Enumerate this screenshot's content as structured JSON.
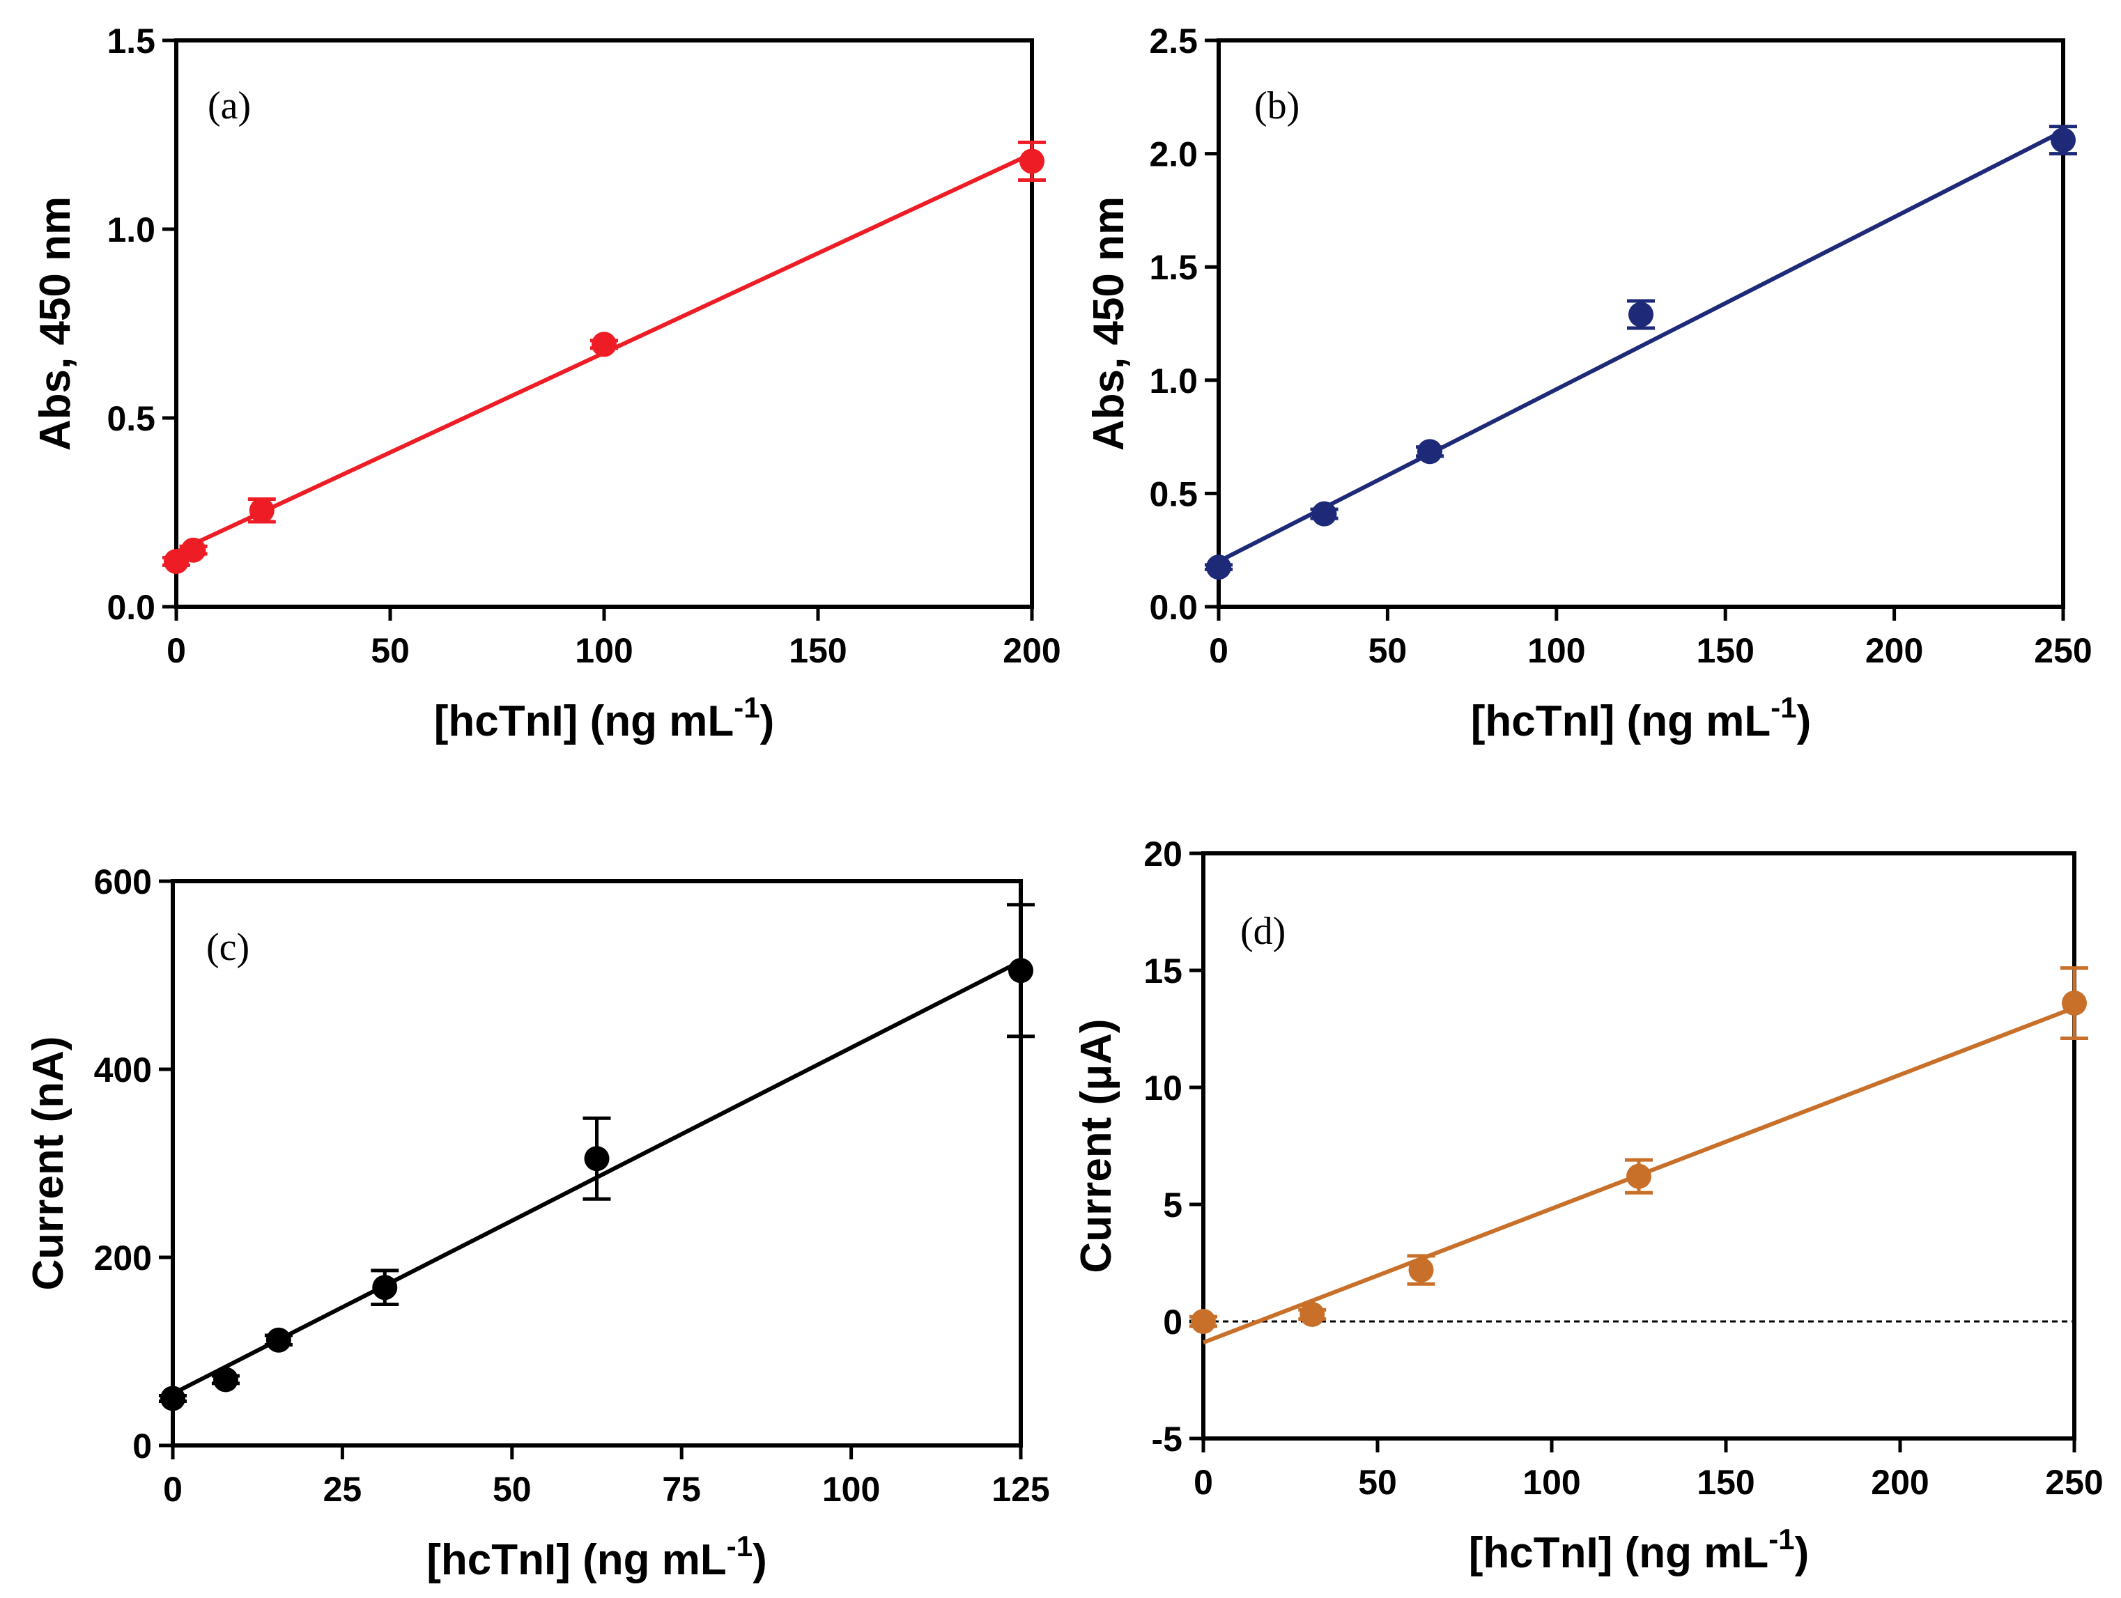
{
  "chart_data": [
    {
      "type": "scatter",
      "panel_label": "(a)",
      "xlabel_main": "[hcTnI] (ng mL",
      "xlabel_sup": "-1",
      "xlabel_close": ")",
      "ylabel": "Abs, 450 nm",
      "xlim": [
        0,
        200
      ],
      "ylim": [
        0,
        1.5
      ],
      "xticks": [
        0,
        50,
        100,
        150,
        200
      ],
      "yticks": [
        0,
        0.5,
        1.0,
        1.5
      ],
      "xtick_labels": [
        "0",
        "50",
        "100",
        "150",
        "200"
      ],
      "ytick_labels": [
        "0.0",
        "0.5",
        "1.0",
        "1.5"
      ],
      "color": "#ee1c24",
      "points": [
        {
          "x": 0,
          "y": 0.12,
          "err": 0.01
        },
        {
          "x": 4,
          "y": 0.15,
          "err": 0.01
        },
        {
          "x": 20,
          "y": 0.255,
          "err": 0.03
        },
        {
          "x": 100,
          "y": 0.695,
          "err": 0.01
        },
        {
          "x": 200,
          "y": 1.18,
          "err": 0.05
        }
      ],
      "fit": {
        "x": [
          0,
          200
        ],
        "y": [
          0.145,
          1.2
        ]
      },
      "zero_line": false,
      "grid": false
    },
    {
      "type": "scatter",
      "panel_label": "(b)",
      "xlabel_main": "[hcTnI] (ng mL",
      "xlabel_sup": "-1",
      "xlabel_close": ")",
      "ylabel": "Abs, 450 nm",
      "xlim": [
        0,
        250
      ],
      "ylim": [
        0,
        2.5
      ],
      "xticks": [
        0,
        50,
        100,
        150,
        200,
        250
      ],
      "yticks": [
        0,
        0.5,
        1.0,
        1.5,
        2.0,
        2.5
      ],
      "xtick_labels": [
        "0",
        "50",
        "100",
        "150",
        "200",
        "250"
      ],
      "ytick_labels": [
        "0.0",
        "0.5",
        "1.0",
        "1.5",
        "2.0",
        "2.5"
      ],
      "color": "#1e2a78",
      "points": [
        {
          "x": 0,
          "y": 0.175,
          "err": 0.01
        },
        {
          "x": 31.25,
          "y": 0.41,
          "err": 0.02
        },
        {
          "x": 62.5,
          "y": 0.685,
          "err": 0.02
        },
        {
          "x": 125,
          "y": 1.29,
          "err": 0.06
        },
        {
          "x": 250,
          "y": 2.06,
          "err": 0.06
        }
      ],
      "fit": {
        "x": [
          0,
          250
        ],
        "y": [
          0.2,
          2.1
        ]
      },
      "zero_line": false,
      "grid": false
    },
    {
      "type": "scatter",
      "panel_label": "(c)",
      "xlabel_main": "[hcTnI] (ng mL",
      "xlabel_sup": "-1",
      "xlabel_close": ")",
      "ylabel": "Current (nA)",
      "xlim": [
        0,
        125
      ],
      "ylim": [
        0,
        600
      ],
      "xticks": [
        0,
        25,
        50,
        75,
        100,
        125
      ],
      "yticks": [
        0,
        200,
        400,
        600
      ],
      "xtick_labels": [
        "0",
        "25",
        "50",
        "75",
        "100",
        "125"
      ],
      "ytick_labels": [
        "0",
        "200",
        "400",
        "600"
      ],
      "color": "#000000",
      "points": [
        {
          "x": 0,
          "y": 50,
          "err": 3
        },
        {
          "x": 7.8,
          "y": 70,
          "err": 4
        },
        {
          "x": 15.6,
          "y": 112,
          "err": 5
        },
        {
          "x": 31.25,
          "y": 168,
          "err": 18
        },
        {
          "x": 62.5,
          "y": 305,
          "err": 43
        },
        {
          "x": 125,
          "y": 505,
          "err": 70
        }
      ],
      "fit": {
        "x": [
          0,
          125
        ],
        "y": [
          55,
          515
        ]
      },
      "zero_line": false,
      "grid": false
    },
    {
      "type": "scatter",
      "panel_label": "(d)",
      "xlabel_main": "[hcTnI] (ng mL",
      "xlabel_sup": "-1",
      "xlabel_close": ")",
      "ylabel": "Current (μA)",
      "xlim": [
        0,
        250
      ],
      "ylim": [
        -5,
        20
      ],
      "xticks": [
        0,
        50,
        100,
        150,
        200,
        250
      ],
      "yticks": [
        -5,
        0,
        5,
        10,
        15,
        20
      ],
      "xtick_labels": [
        "0",
        "50",
        "100",
        "150",
        "200",
        "250"
      ],
      "ytick_labels": [
        "-5",
        "0",
        "5",
        "10",
        "15",
        "20"
      ],
      "color": "#c8702a",
      "points": [
        {
          "x": 0,
          "y": 0,
          "err": 0.2
        },
        {
          "x": 31.25,
          "y": 0.3,
          "err": 0.2
        },
        {
          "x": 62.5,
          "y": 2.2,
          "err": 0.6
        },
        {
          "x": 125,
          "y": 6.2,
          "err": 0.7
        },
        {
          "x": 250,
          "y": 13.6,
          "err": 1.5
        }
      ],
      "fit": {
        "x": [
          0,
          250
        ],
        "y": [
          -0.9,
          13.4
        ]
      },
      "zero_line": true,
      "grid": false
    }
  ]
}
